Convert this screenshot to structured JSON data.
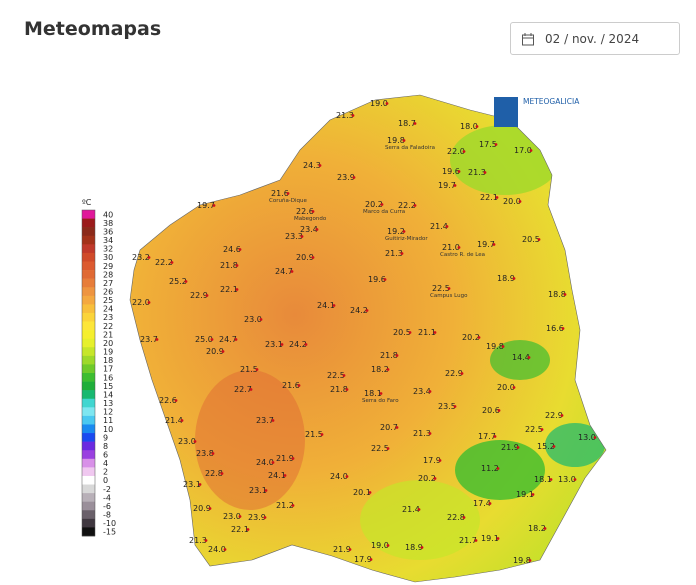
{
  "header": {
    "title": "Meteomapas",
    "date": "02 / nov. / 2024"
  },
  "map": {
    "logo": "METEOGALICIA",
    "legend": {
      "unit": "ºC",
      "labels": [
        40,
        38,
        36,
        34,
        32,
        30,
        29,
        28,
        27,
        26,
        25,
        24,
        23,
        22,
        21,
        20,
        19,
        18,
        17,
        16,
        15,
        14,
        13,
        12,
        11,
        10,
        9,
        8,
        6,
        4,
        2,
        0,
        -2,
        -4,
        -6,
        -8,
        -10,
        -15
      ],
      "colors": [
        "#e0189a",
        "#9b1b1b",
        "#8b2a1a",
        "#a3321a",
        "#c0392b",
        "#d04a2a",
        "#dc5a30",
        "#e06a34",
        "#e77d3a",
        "#ee9440",
        "#f4a840",
        "#f8bf3c",
        "#fbd43a",
        "#fde63a",
        "#f5ef2e",
        "#e6f02c",
        "#c6e62a",
        "#9ed92a",
        "#6fca2a",
        "#3dbd30",
        "#1fae3a",
        "#18b870",
        "#40d6d0",
        "#7ee6f0",
        "#4ac8f0",
        "#1a8af0",
        "#1a4af0",
        "#6a2ae0",
        "#9a40e0",
        "#d890e8",
        "#f0c8f0",
        "#ffffff",
        "#d8d8d8",
        "#b8b0b8",
        "#9a8f9a",
        "#6a606a",
        "#403840",
        "#101010"
      ]
    },
    "stations": [
      {
        "value": "19.0"
      },
      {
        "value": "21.3"
      },
      {
        "value": "18.7"
      },
      {
        "value": "18.0"
      },
      {
        "value": "19.8",
        "name": "Serra da Faladoira"
      },
      {
        "value": "22.0"
      },
      {
        "value": "17.5"
      },
      {
        "value": "17.0"
      },
      {
        "value": "24.3"
      },
      {
        "value": "23.9"
      },
      {
        "value": "19.6"
      },
      {
        "value": "21.3"
      },
      {
        "value": "19.7"
      },
      {
        "value": "21.6",
        "name": "Coruña-Dique"
      },
      {
        "value": "22.1"
      },
      {
        "value": "20.0"
      },
      {
        "value": "19.7"
      },
      {
        "value": "22.6",
        "name": "Mabegondo"
      },
      {
        "value": "20.2",
        "name": "Marco da Curra"
      },
      {
        "value": "22.2"
      },
      {
        "value": "21.4"
      },
      {
        "value": "23.4"
      },
      {
        "value": "23.3"
      },
      {
        "value": "19.2",
        "name": "Guitiriz-Mirador"
      },
      {
        "value": "20.5"
      },
      {
        "value": "24.6"
      },
      {
        "value": "21.0",
        "name": "Castro R. de Lea"
      },
      {
        "value": "19.7"
      },
      {
        "value": "20.9"
      },
      {
        "value": "21.3"
      },
      {
        "value": "23.2"
      },
      {
        "value": "22.2"
      },
      {
        "value": "21.8"
      },
      {
        "value": "24.7"
      },
      {
        "value": "18.9"
      },
      {
        "value": "25.2"
      },
      {
        "value": "19.6"
      },
      {
        "value": "22.1"
      },
      {
        "value": "22.5",
        "name": "Campus Lugo"
      },
      {
        "value": "18.8"
      },
      {
        "value": "22.9"
      },
      {
        "value": "22.0"
      },
      {
        "value": "24.1"
      },
      {
        "value": "24.2"
      },
      {
        "value": "23.0"
      },
      {
        "value": "16.6"
      },
      {
        "value": "20.5"
      },
      {
        "value": "21.1"
      },
      {
        "value": "23.7"
      },
      {
        "value": "25.0"
      },
      {
        "value": "24.7"
      },
      {
        "value": "20.2"
      },
      {
        "value": "23.1"
      },
      {
        "value": "24.2"
      },
      {
        "value": "19.8"
      },
      {
        "value": "20.9"
      },
      {
        "value": "21.8"
      },
      {
        "value": "14.4"
      },
      {
        "value": "21.5"
      },
      {
        "value": "22.5"
      },
      {
        "value": "18.2"
      },
      {
        "value": "22.9"
      },
      {
        "value": "21.6"
      },
      {
        "value": "21.8"
      },
      {
        "value": "18.1",
        "name": "Serra do Faro"
      },
      {
        "value": "23.4"
      },
      {
        "value": "20.0"
      },
      {
        "value": "22.7"
      },
      {
        "value": "22.6"
      },
      {
        "value": "23.5"
      },
      {
        "value": "20.6"
      },
      {
        "value": "22.9"
      },
      {
        "value": "21.4"
      },
      {
        "value": "23.7"
      },
      {
        "value": "20.7"
      },
      {
        "value": "22.5"
      },
      {
        "value": "17.7"
      },
      {
        "value": "21.5"
      },
      {
        "value": "23.0"
      },
      {
        "value": "21.3"
      },
      {
        "value": "13.0"
      },
      {
        "value": "21.9"
      },
      {
        "value": "22.5"
      },
      {
        "value": "15.2"
      },
      {
        "value": "23.8"
      },
      {
        "value": "21.9"
      },
      {
        "value": "17.9"
      },
      {
        "value": "11.2"
      },
      {
        "value": "24.0"
      },
      {
        "value": "22.8"
      },
      {
        "value": "20.2"
      },
      {
        "value": "24.0"
      },
      {
        "value": "24.1"
      },
      {
        "value": "18.1"
      },
      {
        "value": "13.0"
      },
      {
        "value": "23.1"
      },
      {
        "value": "23.1"
      },
      {
        "value": "20.1"
      },
      {
        "value": "19.1"
      },
      {
        "value": "20.9"
      },
      {
        "value": "21.2"
      },
      {
        "value": "17.4"
      },
      {
        "value": "21.4"
      },
      {
        "value": "22.8"
      },
      {
        "value": "18.2"
      },
      {
        "value": "23.0"
      },
      {
        "value": "23.9"
      },
      {
        "value": "22.1"
      },
      {
        "value": "21.3"
      },
      {
        "value": "24.0"
      },
      {
        "value": "19.0"
      },
      {
        "value": "21.9"
      },
      {
        "value": "18.9"
      },
      {
        "value": "21.7"
      },
      {
        "value": "19.1"
      },
      {
        "value": "17.9"
      },
      {
        "value": "19.8"
      }
    ]
  }
}
